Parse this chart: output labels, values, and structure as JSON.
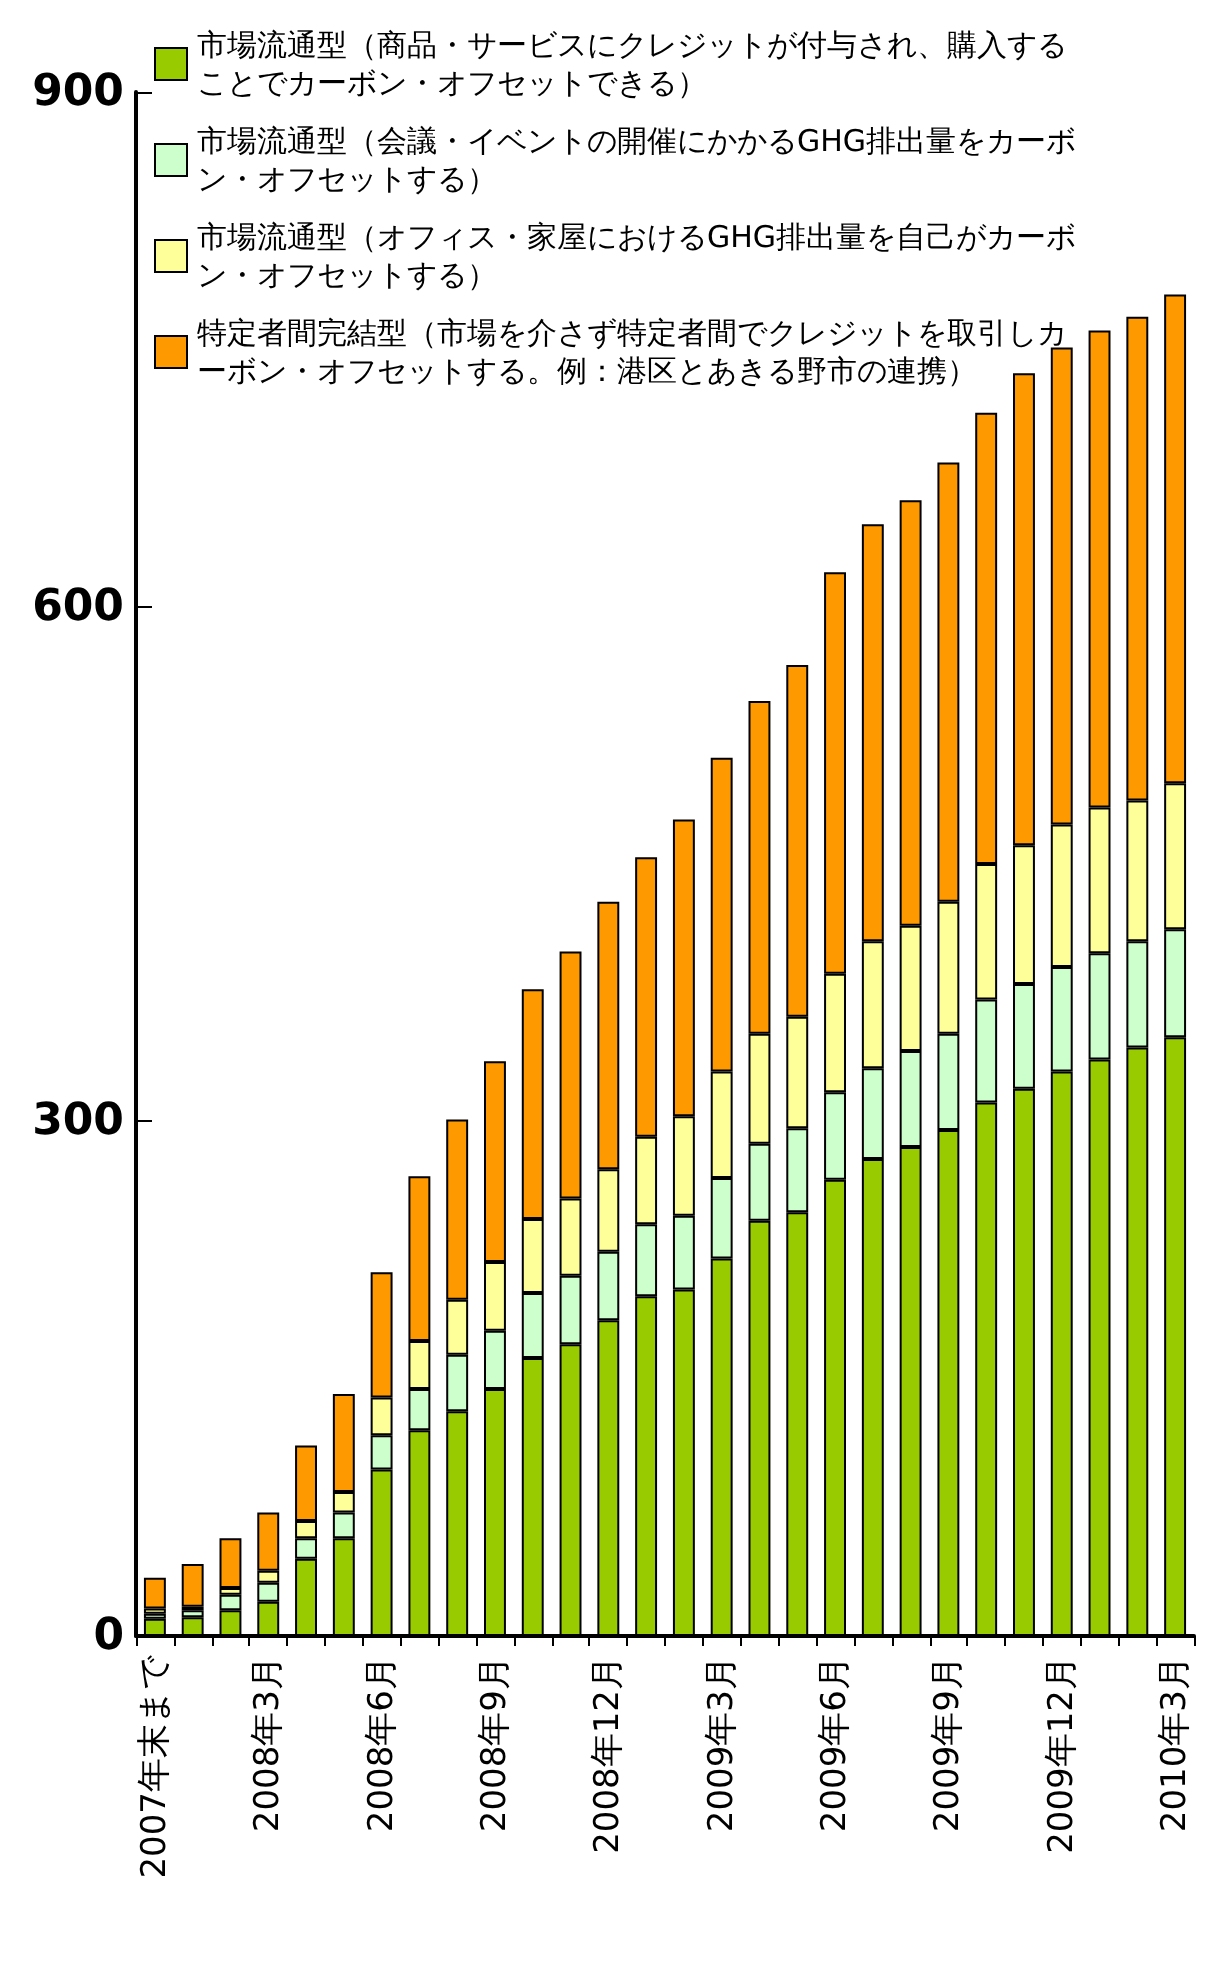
{
  "chart_data": {
    "type": "bar",
    "stacked": true,
    "categories": [
      "2007年末まで",
      null,
      null,
      "2008年3月",
      null,
      null,
      "2008年6月",
      null,
      null,
      "2008年9月",
      null,
      null,
      "2008年12月",
      null,
      null,
      "2009年3月",
      null,
      null,
      "2009年6月",
      null,
      null,
      "2009年9月",
      null,
      null,
      "2009年12月",
      null,
      null,
      "2010年3月"
    ],
    "series": [
      {
        "name": "市場流通型（商品・サービスにクレジットが付与され、購入することでカーボン・オフセットできる）",
        "color": "#99cc00",
        "values": [
          10,
          11,
          15,
          20,
          45,
          57,
          97,
          120,
          131,
          144,
          162,
          170,
          184,
          198,
          202,
          220,
          242,
          247,
          266,
          278,
          285,
          295,
          311,
          319,
          329,
          336,
          343,
          349
        ]
      },
      {
        "name": "市場流通型（会議・イベントの開催にかかるGHG排出量をカーボン・オフセットする）",
        "color": "#ccffcc",
        "values": [
          3,
          4,
          9,
          11,
          12,
          15,
          20,
          24,
          33,
          34,
          38,
          40,
          40,
          42,
          43,
          47,
          45,
          49,
          51,
          53,
          56,
          56,
          60,
          61,
          61,
          62,
          62,
          63
        ]
      },
      {
        "name": "市場流通型（オフィス・家屋におけるGHG排出量を自己がカーボン・オフセットする）",
        "color": "#ffff99",
        "values": [
          3,
          2,
          4,
          7,
          10,
          12,
          22,
          28,
          32,
          40,
          43,
          45,
          48,
          51,
          58,
          62,
          64,
          65,
          69,
          74,
          73,
          77,
          79,
          81,
          83,
          85,
          82,
          85
        ]
      },
      {
        "name": "特定者間完結型（市場を介さず特定者間でクレジットを取引しカーボン・オフセットする。例：港区とあきる野市の連携）",
        "color": "#ff9900",
        "values": [
          18,
          25,
          29,
          34,
          44,
          57,
          73,
          96,
          105,
          117,
          134,
          144,
          156,
          163,
          173,
          183,
          194,
          205,
          234,
          243,
          248,
          256,
          263,
          275,
          278,
          278,
          282,
          285
        ]
      }
    ],
    "ylim": [
      0,
      900
    ],
    "yticks": [
      0,
      300,
      600,
      900
    ],
    "legend": "top left",
    "grid": false
  }
}
